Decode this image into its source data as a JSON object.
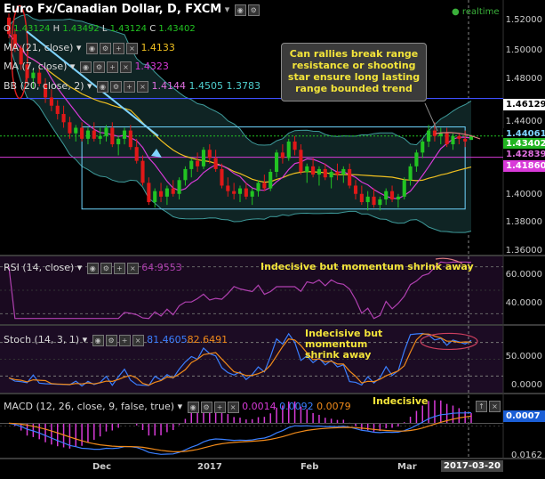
{
  "header": {
    "title": "Euro Fx/Canadian Dollar, D, FXCM",
    "realtime": "realtime",
    "ohlc": {
      "o_label": "O",
      "o": "1.43124",
      "h_label": "H",
      "h": "1.43492",
      "l_label": "L",
      "l": "1.43124",
      "c_label": "C",
      "c": "1.43402"
    }
  },
  "indicators": {
    "ma21": {
      "label": "MA (21, close)",
      "value": "1.4133"
    },
    "ma7": {
      "label": "MA (7, close)",
      "value": "1.4323"
    },
    "bb": {
      "label": "BB (20, close, 2)",
      "v1": "1.4144",
      "v2": "1.4505",
      "v3": "1.3783"
    },
    "rsi": {
      "label": "RSI (14, close)",
      "value": "64.9553"
    },
    "stoch": {
      "label": "Stoch (14, 3, 1)",
      "v1": "81.4605",
      "v2": "82.6491"
    },
    "macd": {
      "label": "MACD (12, 26, close, 9, false, true)",
      "v1": "0.0014",
      "v2": "0.0092",
      "v3": "0.0079"
    }
  },
  "annotations": {
    "callout": "Can rallies break range resistance or shooting star ensure long lasting range bounded trend",
    "rsi_note": "Indecisive but momentum shrink away",
    "stoch_note": "Indecisive but momentum shrink away",
    "macd_note": "Indecisive"
  },
  "price_tags": {
    "t1": {
      "text": "1.46129",
      "bg": "#ffffff",
      "fg": "#000000"
    },
    "t2": {
      "text": "1.44061",
      "bg": "#000000",
      "fg": "#7fd4ff"
    },
    "t3": {
      "text": "1.43402",
      "bg": "#22b522",
      "fg": "#ffffff"
    },
    "t4": {
      "text": "1.42839",
      "bg": "#000000",
      "fg": "#e070e0"
    },
    "t5": {
      "text": "1.41860",
      "bg": "#d93ad9",
      "fg": "#ffffff"
    },
    "macd_tag": {
      "text": "0.0007",
      "bg": "#1b5fd6",
      "fg": "#ffffff"
    }
  },
  "axes": {
    "price_ticks": [
      "1.52000",
      "1.50000",
      "1.48000",
      "1.44000",
      "1.40000",
      "1.38000",
      "1.36000"
    ],
    "rsi_ticks": [
      "60.0000",
      "40.0000"
    ],
    "stoch_ticks": [
      "50.0000",
      "0.0000"
    ],
    "macd_ticks": [
      "0.0162"
    ],
    "x_labels": [
      "Dec",
      "2017",
      "Feb",
      "Mar",
      "2017-03-20"
    ]
  },
  "colors": {
    "bull": "#22c422",
    "bear": "#e01818",
    "ma21": "#f0c020",
    "ma7": "#d83ad8",
    "bb": "#3e9a9a",
    "range_box": "#6fd6ff",
    "arrow": "#7fd4ff",
    "rsi": "#b040b0",
    "stoch_k": "#3a7fff",
    "stoch_d": "#f08a1a",
    "macd": "#3a7fff",
    "signal": "#f08a1a",
    "hist": "#d83ad8",
    "accent": "#f3e43a",
    "panel_sep": "#3a3a3a"
  },
  "chart_data": {
    "type": "candlestick",
    "symbol": "Euro Fx/Canadian Dollar",
    "timeframe": "D",
    "price_ylim": [
      1.355,
      1.525
    ],
    "range_box": {
      "upper": 1.4406,
      "lower": 1.381
    },
    "resistance": 1.46129,
    "candles": [
      [
        1.52,
        1.523,
        1.505,
        1.508
      ],
      [
        1.508,
        1.512,
        1.495,
        1.498
      ],
      [
        1.498,
        1.5,
        1.482,
        1.486
      ],
      [
        1.486,
        1.49,
        1.472,
        1.476
      ],
      [
        1.476,
        1.482,
        1.468,
        1.48
      ],
      [
        1.48,
        1.484,
        1.47,
        1.472
      ],
      [
        1.472,
        1.476,
        1.458,
        1.462
      ],
      [
        1.462,
        1.468,
        1.452,
        1.456
      ],
      [
        1.456,
        1.46,
        1.446,
        1.45
      ],
      [
        1.45,
        1.456,
        1.44,
        1.444
      ],
      [
        1.444,
        1.448,
        1.432,
        1.436
      ],
      [
        1.436,
        1.442,
        1.43,
        1.44
      ],
      [
        1.44,
        1.444,
        1.43,
        1.432
      ],
      [
        1.432,
        1.44,
        1.428,
        1.438
      ],
      [
        1.438,
        1.444,
        1.43,
        1.432
      ],
      [
        1.432,
        1.44,
        1.428,
        1.434
      ],
      [
        1.434,
        1.442,
        1.43,
        1.44
      ],
      [
        1.44,
        1.444,
        1.426,
        1.428
      ],
      [
        1.428,
        1.434,
        1.42,
        1.432
      ],
      [
        1.432,
        1.44,
        1.428,
        1.438
      ],
      [
        1.438,
        1.442,
        1.424,
        1.426
      ],
      [
        1.426,
        1.432,
        1.414,
        1.416
      ],
      [
        1.416,
        1.42,
        1.398,
        1.4
      ],
      [
        1.4,
        1.404,
        1.384,
        1.386
      ],
      [
        1.386,
        1.396,
        1.382,
        1.394
      ],
      [
        1.394,
        1.4,
        1.386,
        1.39
      ],
      [
        1.39,
        1.398,
        1.384,
        1.396
      ],
      [
        1.396,
        1.402,
        1.39,
        1.392
      ],
      [
        1.392,
        1.404,
        1.388,
        1.402
      ],
      [
        1.402,
        1.412,
        1.398,
        1.41
      ],
      [
        1.41,
        1.418,
        1.404,
        1.416
      ],
      [
        1.416,
        1.422,
        1.408,
        1.412
      ],
      [
        1.412,
        1.426,
        1.41,
        1.424
      ],
      [
        1.424,
        1.428,
        1.414,
        1.418
      ],
      [
        1.418,
        1.424,
        1.408,
        1.41
      ],
      [
        1.41,
        1.414,
        1.396,
        1.398
      ],
      [
        1.398,
        1.404,
        1.39,
        1.394
      ],
      [
        1.394,
        1.4,
        1.388,
        1.392
      ],
      [
        1.392,
        1.398,
        1.386,
        1.396
      ],
      [
        1.396,
        1.4,
        1.388,
        1.39
      ],
      [
        1.39,
        1.396,
        1.384,
        1.394
      ],
      [
        1.394,
        1.402,
        1.39,
        1.4
      ],
      [
        1.4,
        1.406,
        1.394,
        1.396
      ],
      [
        1.396,
        1.41,
        1.394,
        1.408
      ],
      [
        1.408,
        1.424,
        1.404,
        1.422
      ],
      [
        1.422,
        1.428,
        1.414,
        1.418
      ],
      [
        1.418,
        1.432,
        1.416,
        1.43
      ],
      [
        1.43,
        1.434,
        1.42,
        1.424
      ],
      [
        1.424,
        1.428,
        1.406,
        1.408
      ],
      [
        1.408,
        1.414,
        1.4,
        1.412
      ],
      [
        1.412,
        1.418,
        1.404,
        1.406
      ],
      [
        1.406,
        1.412,
        1.398,
        1.41
      ],
      [
        1.41,
        1.414,
        1.402,
        1.404
      ],
      [
        1.404,
        1.41,
        1.396,
        1.408
      ],
      [
        1.408,
        1.414,
        1.402,
        1.406
      ],
      [
        1.406,
        1.412,
        1.4,
        1.41
      ],
      [
        1.41,
        1.414,
        1.396,
        1.398
      ],
      [
        1.398,
        1.402,
        1.388,
        1.392
      ],
      [
        1.392,
        1.398,
        1.384,
        1.386
      ],
      [
        1.386,
        1.394,
        1.38,
        1.39
      ],
      [
        1.39,
        1.396,
        1.382,
        1.384
      ],
      [
        1.384,
        1.39,
        1.38,
        1.388
      ],
      [
        1.388,
        1.396,
        1.384,
        1.394
      ],
      [
        1.394,
        1.398,
        1.386,
        1.388
      ],
      [
        1.388,
        1.392,
        1.382,
        1.39
      ],
      [
        1.39,
        1.404,
        1.388,
        1.402
      ],
      [
        1.402,
        1.414,
        1.398,
        1.412
      ],
      [
        1.412,
        1.424,
        1.408,
        1.422
      ],
      [
        1.422,
        1.432,
        1.418,
        1.43
      ],
      [
        1.43,
        1.442,
        1.426,
        1.438
      ],
      [
        1.438,
        1.444,
        1.43,
        1.434
      ],
      [
        1.434,
        1.44,
        1.428,
        1.436
      ],
      [
        1.436,
        1.44,
        1.426,
        1.428
      ],
      [
        1.428,
        1.436,
        1.424,
        1.434
      ],
      [
        1.434,
        1.436,
        1.428,
        1.432
      ],
      [
        1.432,
        1.438,
        1.426,
        1.43
      ],
      [
        1.4312,
        1.4349,
        1.4312,
        1.434
      ]
    ],
    "rsi_ylim": [
      25,
      75
    ],
    "stoch_ylim": [
      -5,
      105
    ],
    "macd_ylim": [
      -0.022,
      0.018
    ]
  }
}
